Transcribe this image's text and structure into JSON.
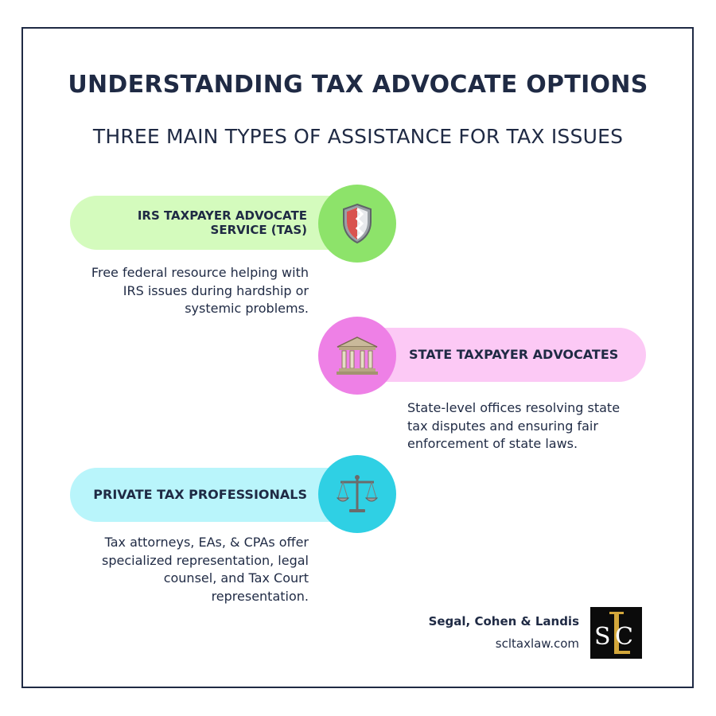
{
  "header": {
    "title": "UNDERSTANDING TAX ADVOCATE OPTIONS",
    "subtitle": "THREE MAIN TYPES OF ASSISTANCE FOR TAX ISSUES"
  },
  "options": [
    {
      "title": "IRS TAXPAYER ADVOCATE SERVICE (TAS)",
      "icon": "shield-icon",
      "description": "Free federal resource helping with IRS issues during hardship or systemic problems.",
      "pill_color": "#d4fbbd",
      "circle_color": "#8de36a"
    },
    {
      "title": "STATE TAXPAYER ADVOCATES",
      "icon": "government-building-icon",
      "description": "State-level offices resolving state tax disputes and ensuring fair enforcement of state laws.",
      "pill_color": "#fcc9f5",
      "circle_color": "#ee80e6"
    },
    {
      "title": "PRIVATE TAX PROFESSIONALS",
      "icon": "scales-icon",
      "description": "Tax attorneys, EAs, & CPAs offer specialized representation, legal counsel, and Tax Court representation.",
      "pill_color": "#b9f5fb",
      "circle_color": "#2fd0e4"
    }
  ],
  "footer": {
    "firm_name": "Segal, Cohen & Landis",
    "website": "scltaxlaw.com",
    "logo_text": "SCL",
    "logo_icon": "scl-monogram-logo"
  }
}
